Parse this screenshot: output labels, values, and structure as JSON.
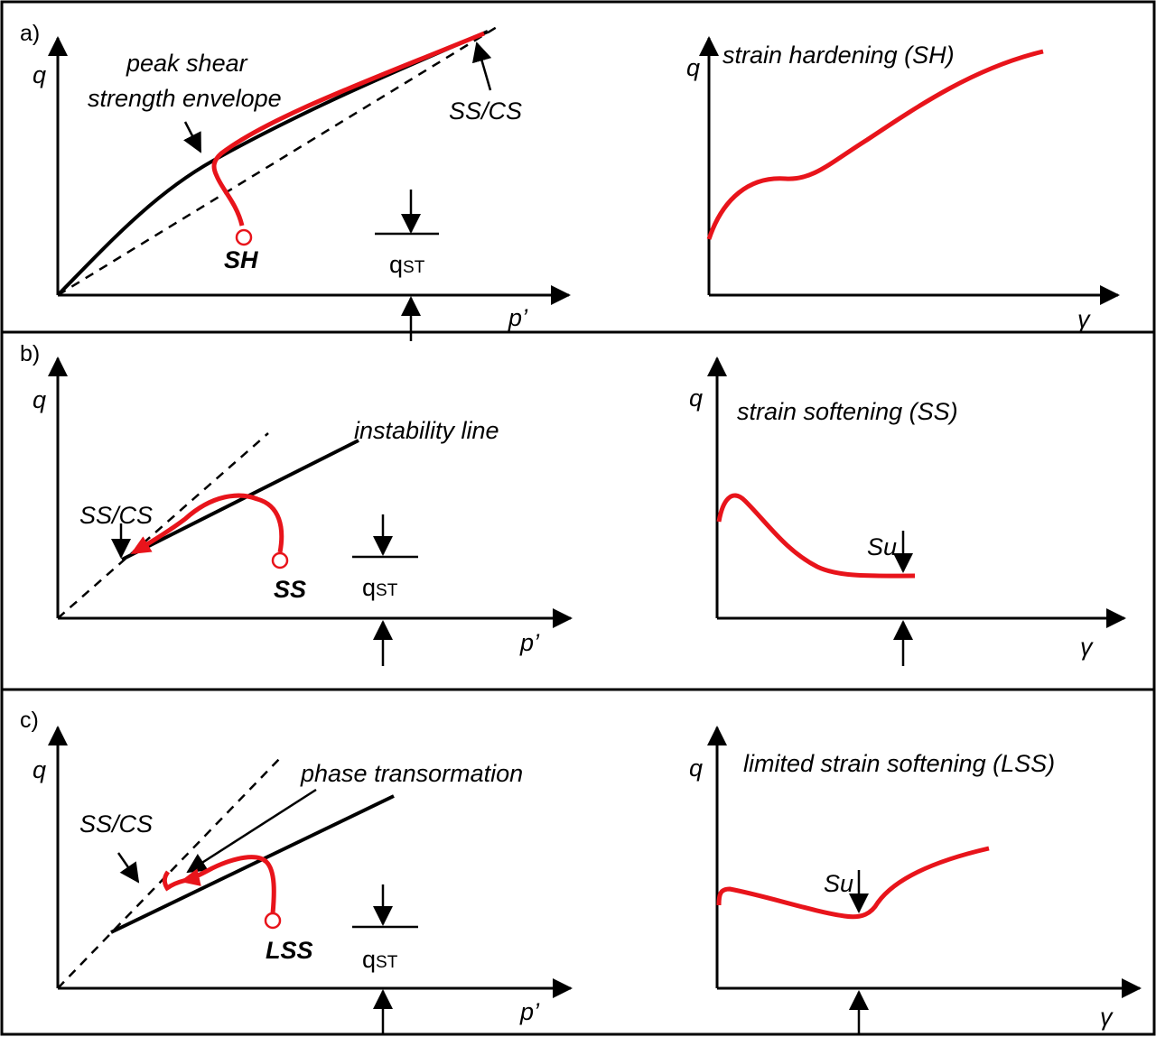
{
  "colors": {
    "path": "#e8141b",
    "line": "#000000",
    "background": "#ffffff"
  },
  "panels": [
    {
      "letter": "a)",
      "left": {
        "q": "q",
        "p": "p’",
        "qst_main": "q",
        "qst_sub": "ST",
        "envelope_label_1": "peak shear",
        "envelope_label_2": "strength envelope",
        "sscs": "SS/CS",
        "start_label": "SH"
      },
      "right": {
        "q": "q",
        "gamma": "γ",
        "title": "strain hardening (SH)"
      }
    },
    {
      "letter": "b)",
      "left": {
        "q": "q",
        "p": "p’",
        "qst_main": "q",
        "qst_sub": "ST",
        "line_label": "instability line",
        "sscs": "SS/CS",
        "start_label": "SS"
      },
      "right": {
        "q": "q",
        "gamma": "γ",
        "title": "strain softening (SS)",
        "su": "Su"
      }
    },
    {
      "letter": "c)",
      "left": {
        "q": "q",
        "p": "p’",
        "qst_main": "q",
        "qst_sub": "ST",
        "line_label": "phase transormation",
        "sscs": "SS/CS",
        "start_label": "LSS"
      },
      "right": {
        "q": "q",
        "gamma": "γ",
        "title": "limited strain softening (LSS)",
        "su": "Su"
      }
    }
  ]
}
